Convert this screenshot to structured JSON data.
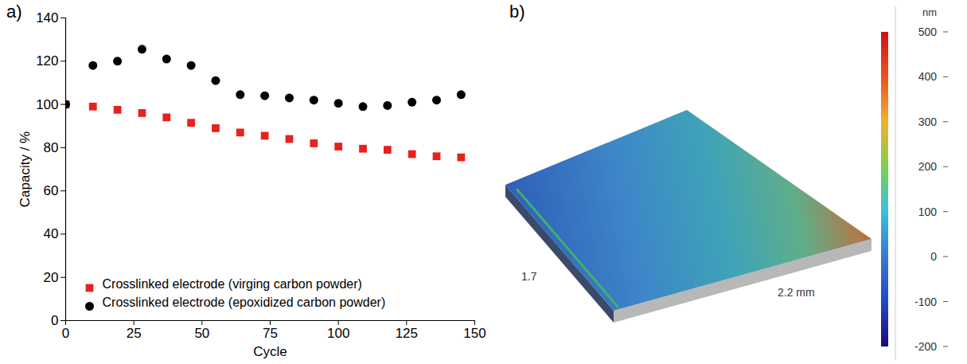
{
  "chart_data": [
    {
      "type": "scatter",
      "panel": "a)",
      "x_label": "Cycle",
      "y_label": "Capacity / %",
      "x": [
        0,
        10,
        19,
        28,
        37,
        46,
        55,
        64,
        73,
        82,
        91,
        100,
        109,
        118,
        127,
        136,
        145
      ],
      "series": [
        {
          "name": "Crosslinked electrode (virging carbon powder)",
          "color": "#e8211b",
          "marker": "square",
          "values": [
            100,
            99,
            97.5,
            96,
            94,
            91.5,
            89,
            87,
            85.5,
            84,
            82,
            80.5,
            79.5,
            79,
            77,
            76,
            75.5
          ]
        },
        {
          "name": "Crosslinked electrode (epoxidized carbon powder)",
          "color": "#000000",
          "marker": "circle",
          "values": [
            100,
            118,
            120,
            125.5,
            121,
            118,
            111,
            104.5,
            104,
            103,
            102,
            100.5,
            99,
            99.5,
            101,
            102,
            104.5
          ]
        }
      ],
      "xlim": [
        0,
        150
      ],
      "xticks": [
        0,
        25,
        50,
        75,
        100,
        125,
        150
      ],
      "ylim": [
        0,
        140
      ],
      "yticks": [
        0,
        20,
        40,
        60,
        80,
        100,
        120,
        140
      ],
      "legend": "lower left"
    },
    {
      "type": "surface",
      "panel": "b)",
      "x_label": "2.2 mm",
      "y_label": "1.7",
      "colorbar": {
        "label": "nm",
        "range": [
          -200,
          500
        ],
        "ticks": [
          500,
          400,
          300,
          200,
          100,
          0,
          -100,
          -200
        ]
      }
    }
  ]
}
